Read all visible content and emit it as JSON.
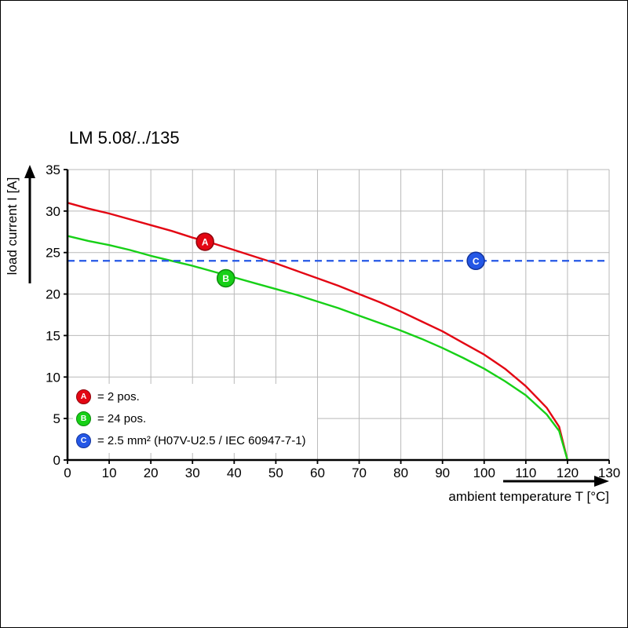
{
  "chart_data": {
    "type": "line",
    "title": "LM 5.08/../135",
    "xlabel": "ambient temperature T [°C]",
    "ylabel": "load current I [A]",
    "xlim": [
      0,
      130
    ],
    "ylim": [
      0,
      35
    ],
    "xticks": [
      0,
      10,
      20,
      30,
      40,
      50,
      60,
      70,
      80,
      90,
      100,
      110,
      120,
      130
    ],
    "yticks": [
      0,
      5,
      10,
      15,
      20,
      25,
      30,
      35
    ],
    "grid": true,
    "legend_position": "bottom-left-inside",
    "series": [
      {
        "name": "A",
        "label": "2 pos.",
        "color": "#e30613",
        "edge": "#8f040c",
        "style": "solid",
        "x": [
          0,
          5,
          10,
          15,
          20,
          25,
          30,
          35,
          40,
          45,
          50,
          55,
          60,
          65,
          70,
          75,
          80,
          85,
          90,
          95,
          100,
          105,
          110,
          115,
          118,
          120
        ],
        "y": [
          31,
          30.3,
          29.7,
          29,
          28.3,
          27.6,
          26.8,
          26.1,
          25.3,
          24.5,
          23.7,
          22.8,
          21.9,
          21,
          20,
          19,
          17.9,
          16.7,
          15.5,
          14.1,
          12.7,
          11,
          8.9,
          6.3,
          4,
          0
        ],
        "marker": {
          "x": 33,
          "y": 26.3
        }
      },
      {
        "name": "B",
        "label": "24 pos.",
        "color": "#17d017",
        "edge": "#0c8a0c",
        "style": "solid",
        "x": [
          0,
          5,
          10,
          15,
          20,
          25,
          30,
          35,
          40,
          45,
          50,
          55,
          60,
          65,
          70,
          75,
          80,
          85,
          90,
          95,
          100,
          105,
          110,
          115,
          118,
          120
        ],
        "y": [
          27,
          26.4,
          25.9,
          25.3,
          24.6,
          24,
          23.4,
          22.7,
          22,
          21.3,
          20.6,
          19.9,
          19.1,
          18.3,
          17.4,
          16.5,
          15.6,
          14.6,
          13.5,
          12.3,
          11,
          9.5,
          7.8,
          5.5,
          3.5,
          0
        ],
        "marker": {
          "x": 38,
          "y": 21.9
        }
      },
      {
        "name": "C",
        "label": "2.5 mm² (H07V-U2.5 / IEC 60947-7-1)",
        "color": "#2457e6",
        "edge": "#13339c",
        "style": "dashed",
        "y_const": 24,
        "marker": {
          "x": 98,
          "y": 24
        }
      }
    ],
    "legend": [
      {
        "letter": "A",
        "text": "= 2 pos.",
        "color": "#e30613",
        "edge": "#8f040c"
      },
      {
        "letter": "B",
        "text": "= 24 pos.",
        "color": "#17d017",
        "edge": "#0c8a0c"
      },
      {
        "letter": "C",
        "text": "= 2.5 mm² (H07V-U2.5 / IEC 60947-7-1)",
        "color": "#2457e6",
        "edge": "#13339c"
      }
    ]
  }
}
